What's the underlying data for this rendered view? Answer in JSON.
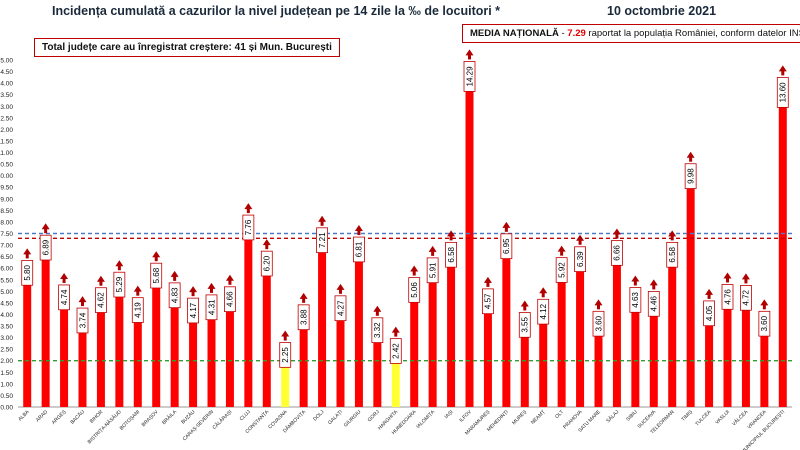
{
  "header": {
    "title": "Incidența cumulată a cazurilor la nivel județean pe 14 zile la ‰ de locuitori *",
    "date": "10 octombrie 2021",
    "increase_note": "Total județe care au înregistrat creștere:  41 și Mun. București",
    "media_label": "MEDIA NAȚIONALĂ",
    "media_dash": " - ",
    "media_value": "7.29",
    "media_suffix": " raportat la populația României, conform datelor INS"
  },
  "colors": {
    "bar": "#ff0000",
    "bar_highlight": "#ffff33",
    "arrow": "#b00000",
    "label_border": "#c00000",
    "national_line": "#c00000",
    "blue_line": "#4a7bc8",
    "green_line": "#2e9e2e"
  },
  "chart_data": {
    "type": "bar",
    "title": "Incidența cumulată a cazurilor la nivel județean pe 14 zile la ‰ de locuitori *",
    "categories": [
      "ALBA",
      "ARAD",
      "ARGEȘ",
      "BACĂU",
      "BIHOR",
      "BISTRIȚA-NĂSĂUD",
      "BOTOȘANI",
      "BRAȘOV",
      "BRĂILA",
      "BUZĂU",
      "CARAȘ-SEVERIN",
      "CĂLĂRAȘI",
      "CLUJ",
      "CONSTANȚA",
      "COVASNA",
      "DÂMBOVIȚA",
      "DOLJ",
      "GALAȚI",
      "GIURGIU",
      "GORJ",
      "HARGHITA",
      "HUNEDOARA",
      "IALOMIȚA",
      "IAȘI",
      "ILFOV",
      "MARAMUREȘ",
      "MEHEDINȚI",
      "MUREȘ",
      "NEAMȚ",
      "OLT",
      "PRAHOVA",
      "SATU MARE",
      "SĂLAJ",
      "SIBIU",
      "SUCEAVA",
      "TELEORMAN",
      "TIMIȘ",
      "TULCEA",
      "VASLUI",
      "VÂLCEA",
      "VRANCEA",
      "MUNICIPIUL BUCUREȘTI"
    ],
    "values": [
      5.8,
      6.89,
      4.74,
      3.74,
      4.62,
      5.29,
      4.19,
      5.68,
      4.83,
      4.17,
      4.31,
      4.66,
      7.76,
      6.2,
      2.25,
      3.88,
      7.21,
      4.27,
      6.81,
      3.32,
      2.42,
      5.06,
      5.91,
      6.58,
      14.29,
      4.57,
      6.95,
      3.55,
      4.12,
      5.92,
      6.39,
      3.6,
      6.66,
      4.63,
      4.46,
      6.58,
      9.98,
      4.05,
      4.76,
      4.72,
      3.6,
      13.6
    ],
    "value_labels": [
      "5.80",
      "6.89",
      "4.74",
      "3.74",
      "4.62",
      "5.29",
      "4.19",
      "5.68",
      "4.83",
      "4.17",
      "4.31",
      "4.66",
      "7.76",
      "6.20",
      "2.25",
      "3.88",
      "7.21",
      "4.27",
      "6.81",
      "3.32",
      "2.42",
      "5.06",
      "5.91",
      "6.58",
      "14.29",
      "4.57",
      "6.95",
      "3.55",
      "4.12",
      "5.92",
      "6.39",
      "3.60",
      "6.66",
      "4.63",
      "4.46",
      "6.58",
      "9.98",
      "4.05",
      "4.76",
      "4.72",
      "3.60",
      "13.60"
    ],
    "increase": [
      true,
      true,
      true,
      true,
      true,
      true,
      true,
      true,
      true,
      true,
      true,
      true,
      true,
      true,
      true,
      true,
      true,
      true,
      true,
      true,
      true,
      true,
      true,
      true,
      true,
      true,
      true,
      true,
      true,
      true,
      true,
      true,
      true,
      true,
      true,
      true,
      true,
      true,
      true,
      true,
      true,
      true
    ],
    "highlighted": [
      "COVASNA",
      "HARGHITA"
    ],
    "ylim": [
      0,
      15
    ],
    "y_ticks": [
      0,
      0.5,
      1,
      1.5,
      2,
      2.5,
      3,
      3.5,
      4,
      4.5,
      5,
      5.5,
      6,
      6.5,
      7,
      7.5,
      8,
      8.5,
      9,
      9.5,
      10,
      10.5,
      11,
      11.5,
      12,
      12.5,
      13,
      13.5,
      14,
      14.5,
      15
    ],
    "y_tick_labels": [
      "0.00",
      "0.50",
      "1.00",
      "1.50",
      "2.00",
      "2.50",
      "3.00",
      "3.50",
      "4.00",
      "4.50",
      "5.00",
      "5.50",
      "6.00",
      "6.50",
      "7.00",
      "7.50",
      "8.00",
      "8.50",
      "9.00",
      "9.50",
      "10.00",
      "10.50",
      "11.00",
      "11.50",
      "12.00",
      "12.50",
      "13.00",
      "13.50",
      "14.00",
      "14.50",
      "15.00"
    ],
    "reference_lines": [
      {
        "value": 7.29,
        "style": "dashed",
        "color": "#c00000"
      },
      {
        "value": 7.5,
        "style": "dashed",
        "color": "#4a7bc8"
      },
      {
        "value": 2.0,
        "style": "dashed",
        "color": "#2e9e2e"
      }
    ],
    "grid": false,
    "legend": "none"
  }
}
